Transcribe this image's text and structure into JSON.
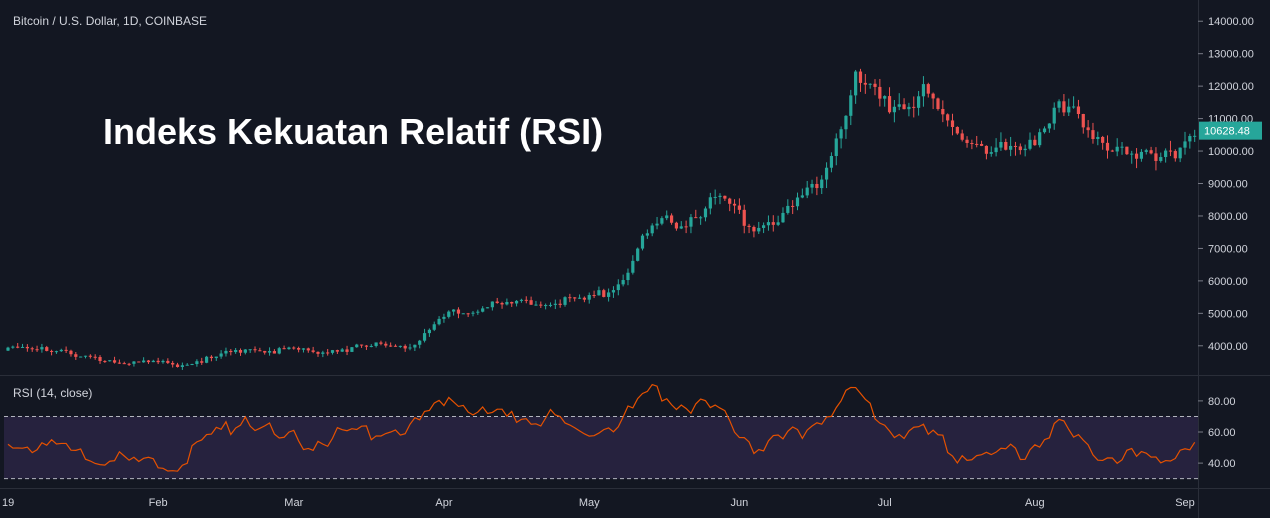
{
  "header": {
    "symbol_title": "Bitcoin / U.S. Dollar, 1D, COINBASE",
    "overlay_title": "Indeks Kekuatan Relatif (RSI)"
  },
  "colors": {
    "background": "#131722",
    "pane_border": "#2a2e39",
    "up": "#26a69a",
    "down": "#ef5350",
    "rsi_line": "#e65100",
    "rsi_band": "#7e57c2",
    "text": "#d1d4dc",
    "price_badge": "#26a69a"
  },
  "chart_data": [
    {
      "type": "candlestick",
      "title": "Bitcoin / U.S. Dollar, 1D, COINBASE",
      "y_ticks": [
        "14000.00",
        "13000.00",
        "12000.00",
        "11000.00",
        "10000.00",
        "9000.00",
        "8000.00",
        "7000.00",
        "6000.00",
        "5000.00",
        "4000.00"
      ],
      "ylim": [
        3100,
        14500
      ],
      "last_price": "10628.48",
      "x_ticks": [
        "19",
        "Feb",
        "Mar",
        "Apr",
        "May",
        "Jun",
        "Jul",
        "Aug",
        "Sep"
      ],
      "weekly_close_points": [
        {
          "date": "2019-01-01",
          "close": 3850
        },
        {
          "date": "2019-01-08",
          "close": 4000
        },
        {
          "date": "2019-01-15",
          "close": 3650
        },
        {
          "date": "2019-01-22",
          "close": 3600
        },
        {
          "date": "2019-01-29",
          "close": 3450
        },
        {
          "date": "2019-02-05",
          "close": 3450
        },
        {
          "date": "2019-02-12",
          "close": 3600
        },
        {
          "date": "2019-02-19",
          "close": 3950
        },
        {
          "date": "2019-02-26",
          "close": 3850
        },
        {
          "date": "2019-03-05",
          "close": 3850
        },
        {
          "date": "2019-03-12",
          "close": 3900
        },
        {
          "date": "2019-03-19",
          "close": 4000
        },
        {
          "date": "2019-03-26",
          "close": 4050
        },
        {
          "date": "2019-04-02",
          "close": 4950
        },
        {
          "date": "2019-04-09",
          "close": 5200
        },
        {
          "date": "2019-04-16",
          "close": 5250
        },
        {
          "date": "2019-04-23",
          "close": 5400
        },
        {
          "date": "2019-04-30",
          "close": 5350
        },
        {
          "date": "2019-05-07",
          "close": 5900
        },
        {
          "date": "2019-05-14",
          "close": 7700
        },
        {
          "date": "2019-05-21",
          "close": 7900
        },
        {
          "date": "2019-05-28",
          "close": 8500
        },
        {
          "date": "2019-06-04",
          "close": 7700
        },
        {
          "date": "2019-06-11",
          "close": 8100
        },
        {
          "date": "2019-06-18",
          "close": 9300
        },
        {
          "date": "2019-06-25",
          "close": 12200
        },
        {
          "date": "2019-07-02",
          "close": 11300
        },
        {
          "date": "2019-07-09",
          "close": 11800
        },
        {
          "date": "2019-07-16",
          "close": 10500
        },
        {
          "date": "2019-07-23",
          "close": 10100
        },
        {
          "date": "2019-07-30",
          "close": 9800
        },
        {
          "date": "2019-08-06",
          "close": 11700
        },
        {
          "date": "2019-08-13",
          "close": 10300
        },
        {
          "date": "2019-08-20",
          "close": 10200
        },
        {
          "date": "2019-08-27",
          "close": 9600
        },
        {
          "date": "2019-09-03",
          "close": 10628
        }
      ]
    },
    {
      "type": "line",
      "title": "RSI (14, close)",
      "y_ticks": [
        "80.00",
        "60.00",
        "40.00"
      ],
      "ylim": [
        24,
        96
      ],
      "upper_band": 70,
      "lower_band": 30,
      "x_ticks": [
        "19",
        "Feb",
        "Mar",
        "Apr",
        "May",
        "Jun",
        "Jul",
        "Aug",
        "Sep"
      ],
      "weekly_points": [
        {
          "date": "2019-01-01",
          "value": 49
        },
        {
          "date": "2019-01-08",
          "value": 54
        },
        {
          "date": "2019-01-15",
          "value": 44
        },
        {
          "date": "2019-01-22",
          "value": 43
        },
        {
          "date": "2019-01-29",
          "value": 38
        },
        {
          "date": "2019-02-05",
          "value": 40
        },
        {
          "date": "2019-02-12",
          "value": 56
        },
        {
          "date": "2019-02-19",
          "value": 70
        },
        {
          "date": "2019-02-26",
          "value": 56
        },
        {
          "date": "2019-03-05",
          "value": 54
        },
        {
          "date": "2019-03-12",
          "value": 58
        },
        {
          "date": "2019-03-19",
          "value": 62
        },
        {
          "date": "2019-03-26",
          "value": 64
        },
        {
          "date": "2019-04-02",
          "value": 86
        },
        {
          "date": "2019-04-09",
          "value": 72
        },
        {
          "date": "2019-04-16",
          "value": 68
        },
        {
          "date": "2019-04-23",
          "value": 70
        },
        {
          "date": "2019-04-30",
          "value": 58
        },
        {
          "date": "2019-05-07",
          "value": 66
        },
        {
          "date": "2019-05-14",
          "value": 85
        },
        {
          "date": "2019-05-21",
          "value": 78
        },
        {
          "date": "2019-05-28",
          "value": 74
        },
        {
          "date": "2019-06-04",
          "value": 52
        },
        {
          "date": "2019-06-11",
          "value": 56
        },
        {
          "date": "2019-06-18",
          "value": 68
        },
        {
          "date": "2019-06-25",
          "value": 86
        },
        {
          "date": "2019-07-02",
          "value": 62
        },
        {
          "date": "2019-07-09",
          "value": 60
        },
        {
          "date": "2019-07-16",
          "value": 46
        },
        {
          "date": "2019-07-23",
          "value": 44
        },
        {
          "date": "2019-07-30",
          "value": 48
        },
        {
          "date": "2019-08-06",
          "value": 64
        },
        {
          "date": "2019-08-13",
          "value": 46
        },
        {
          "date": "2019-08-20",
          "value": 45
        },
        {
          "date": "2019-08-27",
          "value": 40
        },
        {
          "date": "2019-09-03",
          "value": 55
        }
      ]
    }
  ]
}
